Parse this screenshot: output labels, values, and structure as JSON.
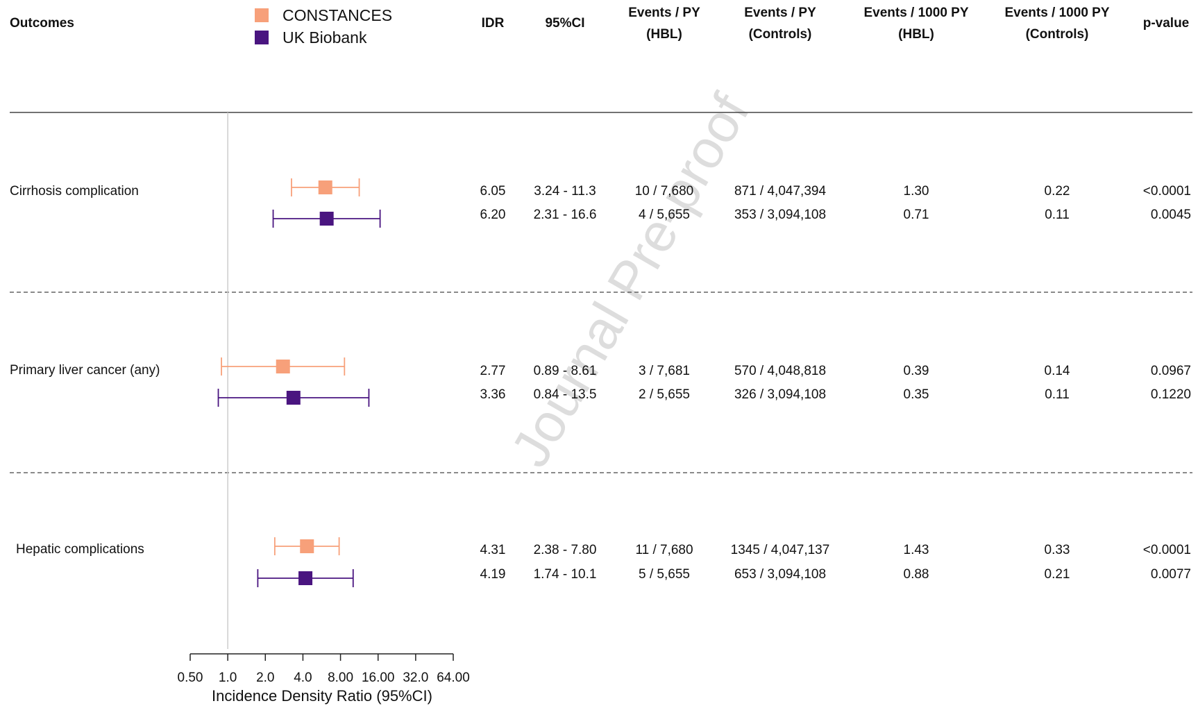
{
  "chart_data": {
    "type": "forest",
    "watermark": "Journal Pre-proof",
    "outcome_header": "Outcomes",
    "columns": [
      [
        "IDR"
      ],
      [
        "95%CI"
      ],
      [
        "Events / PY",
        "(HBL)"
      ],
      [
        "Events / PY",
        "(Controls)"
      ],
      [
        "Events / 1000 PY",
        "(HBL)"
      ],
      [
        "Events / 1000 PY",
        "(Controls)"
      ],
      [
        "p-value"
      ]
    ],
    "categories": [
      "Cirrhosis complication",
      "Primary liver cancer (any)",
      "Hepatic complications"
    ],
    "series": [
      {
        "name": "CONSTANCES",
        "color": "#f7a07a",
        "values": [
          6.05,
          2.77,
          4.31
        ],
        "ci_low": [
          3.24,
          0.89,
          2.38
        ],
        "ci_high": [
          11.3,
          8.61,
          7.8
        ]
      },
      {
        "name": "UK Biobank",
        "color": "#4a1580",
        "values": [
          6.2,
          3.36,
          4.19
        ],
        "ci_low": [
          2.31,
          0.84,
          1.74
        ],
        "ci_high": [
          16.6,
          13.5,
          10.1
        ]
      }
    ],
    "table": [
      [
        [
          "6.05",
          "3.24 - 11.3",
          "10 / 7,680",
          "871 / 4,047,394",
          "1.30",
          "0.22",
          "<0.0001"
        ],
        [
          "6.20",
          "2.31 - 16.6",
          "4 / 5,655",
          "353 / 3,094,108",
          "0.71",
          "0.11",
          "0.0045"
        ]
      ],
      [
        [
          "2.77",
          "0.89 - 8.61",
          "3 / 7,681",
          "570 / 4,048,818",
          "0.39",
          "0.14",
          "0.0967"
        ],
        [
          "3.36",
          "0.84 - 13.5",
          "2 / 5,655",
          "326 / 3,094,108",
          "0.35",
          "0.11",
          "0.1220"
        ]
      ],
      [
        [
          "4.31",
          "2.38 - 7.80",
          "11 / 7,680",
          "1345 / 4,047,137",
          "1.43",
          "0.33",
          "<0.0001"
        ],
        [
          "4.19",
          "1.74 - 10.1",
          "5 / 5,655",
          "653 / 3,094,108",
          "0.88",
          "0.21",
          "0.0077"
        ]
      ]
    ],
    "xlabel": "Incidence Density Ratio (95%CI)",
    "xscale": "log",
    "xlim": [
      0.5,
      64
    ],
    "xticks": [
      {
        "value": 0.5,
        "label": "0.50"
      },
      {
        "value": 1,
        "label": "1.0"
      },
      {
        "value": 2,
        "label": "2.0"
      },
      {
        "value": 4,
        "label": "4.0"
      },
      {
        "value": 8,
        "label": "8.00"
      },
      {
        "value": 16,
        "label": "16.00"
      },
      {
        "value": 32,
        "label": "32.0"
      },
      {
        "value": 64,
        "label": "64.00"
      }
    ],
    "reference": 1
  }
}
